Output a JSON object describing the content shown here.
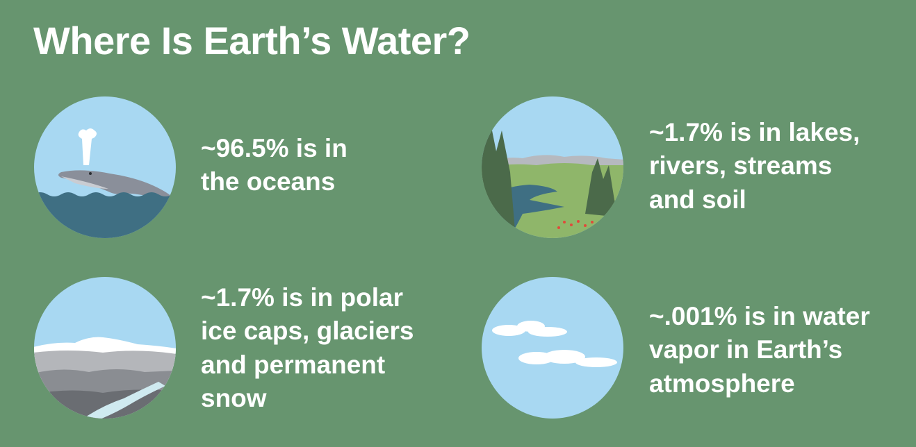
{
  "title": "Where Is Earth’s Water?",
  "items": [
    {
      "scene": "whale-ocean-icon",
      "lines": [
        "~96.5% is in",
        "the oceans"
      ]
    },
    {
      "scene": "lakes-rivers-icon",
      "lines": [
        "~1.7% is in lakes,",
        "rivers, streams",
        "and soil"
      ]
    },
    {
      "scene": "glacier-icon",
      "lines": [
        "~1.7% is in polar",
        "ice caps, glaciers",
        "and permanent",
        "snow"
      ]
    },
    {
      "scene": "clouds-icon",
      "lines": [
        "~.001% is in water",
        "vapor in Earth’s",
        "atmosphere"
      ]
    }
  ],
  "colors": {
    "background": "#67956f",
    "sky": "#a8d8f2",
    "ocean": "#3f6f83",
    "text": "#ffffff"
  }
}
